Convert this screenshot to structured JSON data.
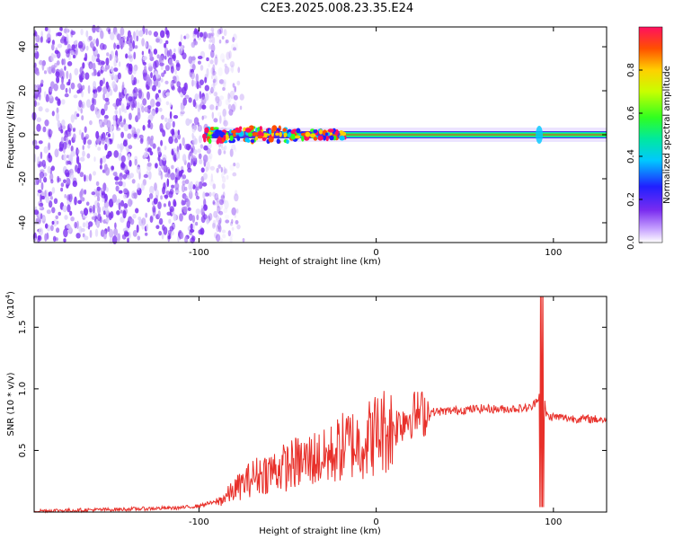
{
  "title": "C2E3.2025.008.23.35.E24",
  "colors": {
    "spectrogram_noise": "#7a2cf0",
    "snr_line": "#e8302a",
    "axes": "#000000"
  },
  "chart_data": [
    {
      "type": "heatmap",
      "name": "spectrogram",
      "xlabel": "Height of straight line (km)",
      "ylabel": "Frequency (Hz)",
      "xlim": [
        -193,
        130
      ],
      "ylim": [
        -49,
        49
      ],
      "xticks": [
        {
          "v": -100,
          "label": "-100"
        },
        {
          "v": 0,
          "label": "0"
        },
        {
          "v": 100,
          "label": "100"
        }
      ],
      "yticks": [
        {
          "v": 40,
          "label": "40"
        },
        {
          "v": 20,
          "label": "20"
        },
        {
          "v": 0,
          "label": "0"
        },
        {
          "v": -20,
          "label": "-20"
        },
        {
          "v": -40,
          "label": "-40"
        }
      ],
      "noise_region_x": [
        -193,
        -90
      ],
      "band_center_hz": 0,
      "colorbar": {
        "label": "Normalized spectral amplitude",
        "range": [
          0,
          1
        ],
        "ticks": [
          {
            "v": 0.0,
            "label": "0.0"
          },
          {
            "v": 0.2,
            "label": "0.2"
          },
          {
            "v": 0.4,
            "label": "0.4"
          },
          {
            "v": 0.6,
            "label": "0.6"
          },
          {
            "v": 0.8,
            "label": "0.8"
          }
        ]
      }
    },
    {
      "type": "line",
      "name": "snr",
      "xlabel": "Height of straight line (km)",
      "ylabel": "SNR (10 * v/v)",
      "scale_label": "(x10",
      "scale_exp": "4",
      "scale_close": ")",
      "xlim": [
        -193,
        130
      ],
      "ylim": [
        0,
        17500
      ],
      "xticks": [
        {
          "v": -100,
          "label": "-100"
        },
        {
          "v": 0,
          "label": "0"
        },
        {
          "v": 100,
          "label": "100"
        }
      ],
      "yticks": [
        {
          "v": 5000,
          "label": "0.5"
        },
        {
          "v": 10000,
          "label": "1.0"
        },
        {
          "v": 15000,
          "label": "1.5"
        }
      ],
      "series": [
        {
          "x": [
            -193,
            -150,
            -110,
            -100,
            -95,
            -90,
            -85,
            -80,
            -75,
            -70,
            -65,
            -60,
            -55,
            -50,
            -45,
            -40,
            -35,
            -30,
            -25,
            -20,
            -15,
            -10,
            -5,
            0,
            5,
            10,
            12,
            15,
            20,
            25,
            30,
            40,
            50,
            60,
            70,
            80,
            85,
            88,
            90,
            92,
            93,
            94,
            95,
            96,
            98,
            100,
            110,
            120,
            130
          ],
          "y": [
            100,
            200,
            350,
            500,
            700,
            800,
            1200,
            1800,
            2300,
            2800,
            3100,
            3300,
            3500,
            3700,
            4000,
            4100,
            4400,
            4300,
            4700,
            5200,
            5600,
            5500,
            5900,
            6400,
            6700,
            6800,
            7100,
            7500,
            7900,
            8000,
            8100,
            8200,
            8300,
            8400,
            8350,
            8400,
            8450,
            8500,
            9000,
            9500,
            17500,
            400,
            9000,
            7900,
            7700,
            7750,
            7600,
            7550,
            7500
          ]
        }
      ]
    }
  ]
}
